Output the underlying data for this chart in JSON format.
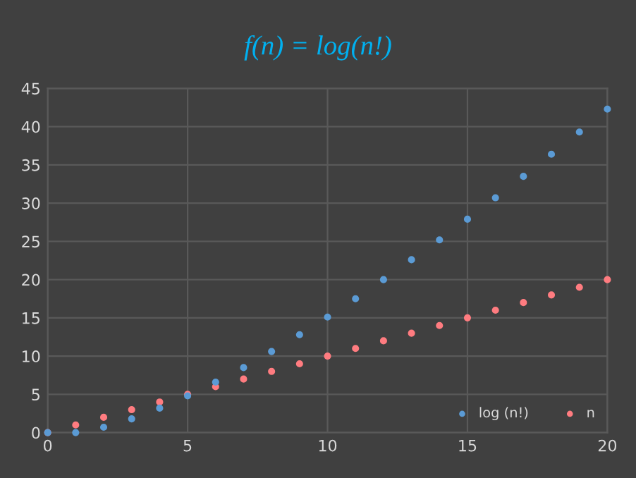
{
  "chart_data": {
    "type": "scatter",
    "title": "f(n) = log(n!)",
    "x": [
      0,
      1,
      2,
      3,
      4,
      5,
      6,
      7,
      8,
      9,
      10,
      11,
      12,
      13,
      14,
      15,
      16,
      17,
      18,
      19,
      20
    ],
    "series": [
      {
        "name": "log (n!)",
        "color": "#5b9bd5",
        "values": [
          0,
          0,
          0.7,
          1.8,
          3.2,
          4.8,
          6.6,
          8.5,
          10.6,
          12.8,
          15.1,
          17.5,
          20.0,
          22.6,
          25.2,
          27.9,
          30.7,
          33.5,
          36.4,
          39.3,
          42.3
        ]
      },
      {
        "name": "n",
        "color": "#ff7c80",
        "values": [
          0,
          1,
          2,
          3,
          4,
          5,
          6,
          7,
          8,
          9,
          10,
          11,
          12,
          13,
          14,
          15,
          16,
          17,
          18,
          19,
          20
        ]
      }
    ],
    "xlim": [
      0,
      20
    ],
    "xticks": [
      0,
      5,
      10,
      15,
      20
    ],
    "ylim": [
      0,
      45
    ],
    "yticks": [
      0,
      5,
      10,
      15,
      20,
      25,
      30,
      35,
      40,
      45
    ],
    "grid": true,
    "legend": "bottom right",
    "marker": "circle"
  }
}
